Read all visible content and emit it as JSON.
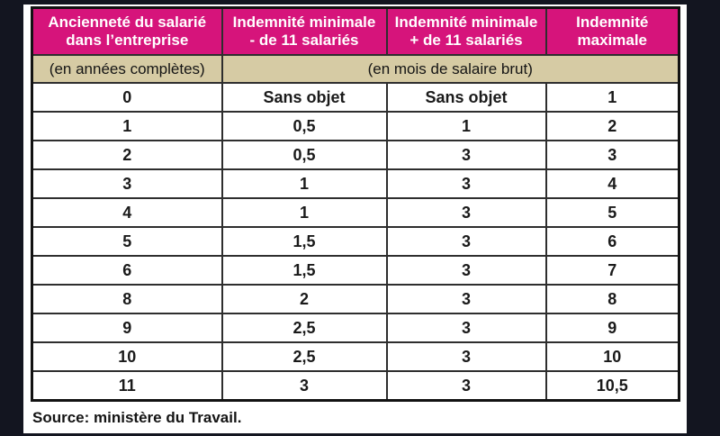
{
  "page": {
    "background_color": "#131520",
    "paper_color": "#ffffff"
  },
  "table": {
    "header_bg": "#d6147b",
    "header_text_color": "#ffffff",
    "subheader_bg": "#d6cba4",
    "headers": [
      "Ancienneté du salarié\ndans l’entreprise",
      "Indemnité minimale\n- de 11 salariés",
      "Indemnité minimale\n+ de 11 salariés",
      "Indemnité\nmaximale"
    ],
    "subheaders": {
      "col1": "(en années complètes)",
      "merged": "(en mois de salaire brut)"
    },
    "rows": [
      [
        "0",
        "Sans objet",
        "Sans objet",
        "1"
      ],
      [
        "1",
        "0,5",
        "1",
        "2"
      ],
      [
        "2",
        "0,5",
        "3",
        "3"
      ],
      [
        "3",
        "1",
        "3",
        "4"
      ],
      [
        "4",
        "1",
        "3",
        "5"
      ],
      [
        "5",
        "1,5",
        "3",
        "6"
      ],
      [
        "6",
        "1,5",
        "3",
        "7"
      ],
      [
        "8",
        "2",
        "3",
        "8"
      ],
      [
        "9",
        "2,5",
        "3",
        "9"
      ],
      [
        "10",
        "2,5",
        "3",
        "10"
      ],
      [
        "11",
        "3",
        "3",
        "10,5"
      ]
    ]
  },
  "source": "Source: ministère du Travail.",
  "chart_data": {
    "type": "table",
    "title": "",
    "columns": [
      "Ancienneté du salarié dans l’entreprise (en années complètes)",
      "Indemnité minimale - de 11 salariés (en mois de salaire brut)",
      "Indemnité minimale + de 11 salariés (en mois de salaire brut)",
      "Indemnité maximale (en mois de salaire brut)"
    ],
    "rows": [
      [
        "0",
        "Sans objet",
        "Sans objet",
        "1"
      ],
      [
        "1",
        "0,5",
        "1",
        "2"
      ],
      [
        "2",
        "0,5",
        "3",
        "3"
      ],
      [
        "3",
        "1",
        "3",
        "4"
      ],
      [
        "4",
        "1",
        "3",
        "5"
      ],
      [
        "5",
        "1,5",
        "3",
        "6"
      ],
      [
        "6",
        "1,5",
        "3",
        "7"
      ],
      [
        "8",
        "2",
        "3",
        "8"
      ],
      [
        "9",
        "2,5",
        "3",
        "9"
      ],
      [
        "10",
        "2,5",
        "3",
        "10"
      ],
      [
        "11",
        "3",
        "3",
        "10,5"
      ]
    ],
    "annotations": [
      "Source: ministère du Travail."
    ]
  }
}
